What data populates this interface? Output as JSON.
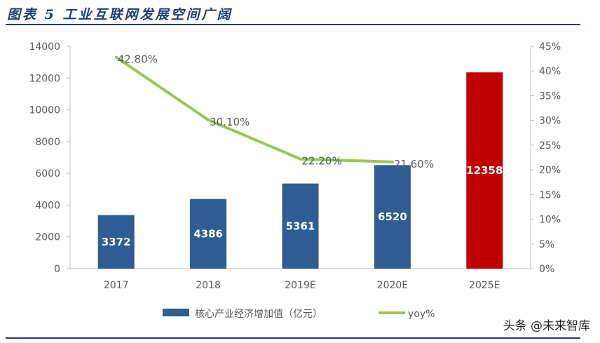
{
  "page": {
    "title": "图表 5 工业互联网发展空间广阔",
    "watermark": "头条 @未来智库"
  },
  "colors": {
    "bar": "#2e5c93",
    "bar_highlight": "#c00000",
    "line": "#9bc551",
    "axis_text": "#595959",
    "rule": "#1f3c78"
  },
  "chart_data": {
    "type": "bar",
    "categories": [
      "2017",
      "2018",
      "2019E",
      "2020E",
      "2025E"
    ],
    "series": [
      {
        "name": "核心产业经济增加值（亿元）",
        "type": "bar",
        "axis": "left",
        "values": [
          3372,
          4386,
          5361,
          6520,
          12358
        ],
        "labels": [
          "3372",
          "4386",
          "5361",
          "6520",
          "12358"
        ],
        "highlight_index": 4
      },
      {
        "name": "yoy%",
        "type": "line",
        "axis": "right",
        "values": [
          42.8,
          30.1,
          22.2,
          21.6,
          null
        ],
        "labels": [
          "42.80%",
          "30.10%",
          "22.20%",
          "21.60%",
          ""
        ]
      }
    ],
    "y_left": {
      "lim": [
        0,
        14000
      ],
      "ticks": [
        "0",
        "2000",
        "4000",
        "6000",
        "8000",
        "10000",
        "12000",
        "14000"
      ]
    },
    "y_right": {
      "lim": [
        0,
        45
      ],
      "ticks": [
        "0%",
        "5%",
        "10%",
        "15%",
        "20%",
        "25%",
        "30%",
        "35%",
        "40%",
        "45%"
      ]
    },
    "legend_position": "bottom",
    "grid": false
  }
}
